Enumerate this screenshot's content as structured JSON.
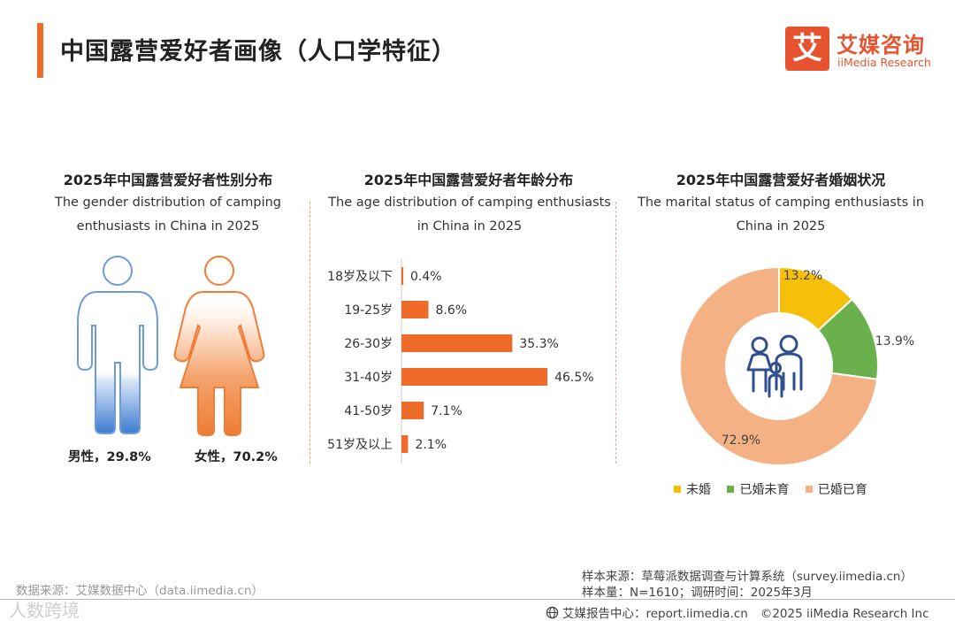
{
  "header": {
    "title": "中国露营爱好者画像（人口学特征）",
    "logo_mark": "艾",
    "logo_cn": "艾媒咨询",
    "logo_en": "iiMedia Research"
  },
  "colors": {
    "accent": "#ee6b2a",
    "male": "#3d7bd0",
    "female": "#ef7d35",
    "unmarried": "#f5bf0a",
    "married_no_child": "#6ab04c",
    "married_with_child": "#f4b183",
    "family_icon": "#2f4f8f"
  },
  "chart_data": [
    {
      "type": "pictogram",
      "title": "2025年中国露营爱好者性别分布",
      "subtitle": "The gender distribution of camping enthusiasts in China in 2025",
      "categories": [
        "男性",
        "女性"
      ],
      "values": [
        29.8,
        70.2
      ],
      "labels": [
        "男性，29.8%",
        "女性，70.2%"
      ],
      "unit": "%"
    },
    {
      "type": "bar",
      "orientation": "horizontal",
      "title": "2025年中国露营爱好者年龄分布",
      "subtitle": "The age distribution of camping enthusiasts in China in 2025",
      "categories": [
        "18岁及以下",
        "19-25岁",
        "26-30岁",
        "31-40岁",
        "41-50岁",
        "51岁及以上"
      ],
      "values": [
        0.4,
        8.6,
        35.3,
        46.5,
        7.1,
        2.1
      ],
      "value_labels": [
        "0.4%",
        "8.6%",
        "35.3%",
        "46.5%",
        "7.1%",
        "2.1%"
      ],
      "xlim": [
        0,
        50
      ],
      "grid": false
    },
    {
      "type": "pie",
      "variant": "donut",
      "title": "2025年中国露营爱好者婚姻状况",
      "subtitle": "The marital status of camping enthusiasts in China in 2025",
      "categories": [
        "未婚",
        "已婚未育",
        "已婚已育"
      ],
      "values": [
        13.2,
        13.9,
        72.9
      ],
      "value_labels": [
        "13.2%",
        "13.9%",
        "72.9%"
      ],
      "legend": "bottom"
    }
  ],
  "footer": {
    "data_source": "数据来源：艾媒数据中心（data.iimedia.cn）",
    "sample_source": "样本来源：草莓派数据调查与计算系统（survey.iimedia.cn）",
    "sample_size": "样本量：N=1610；调研时间：2025年3月",
    "report_center": "艾媒报告中心：report.iimedia.cn",
    "copyright": "©2025  iiMedia Research  Inc",
    "watermark": "人数跨境"
  }
}
